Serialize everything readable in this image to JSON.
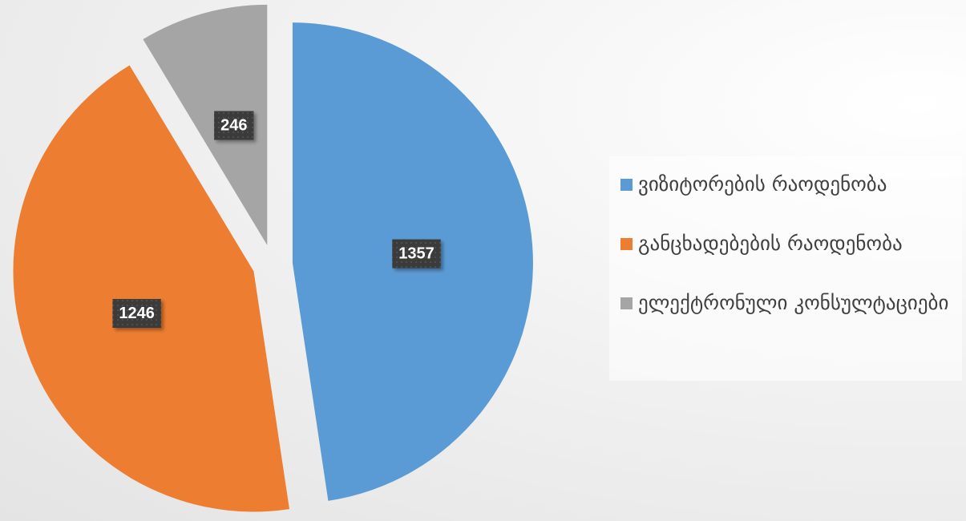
{
  "chart_data": {
    "type": "pie",
    "categories": [
      "ვიზიტორების რაოდენობა",
      "განცხადებების რაოდენობა",
      "ელექტრონული კონსულტაციები"
    ],
    "values": [
      1357,
      1246,
      246
    ],
    "colors": [
      "#5b9bd5",
      "#ed7d31",
      "#a5a5a5"
    ],
    "legend": "right"
  }
}
